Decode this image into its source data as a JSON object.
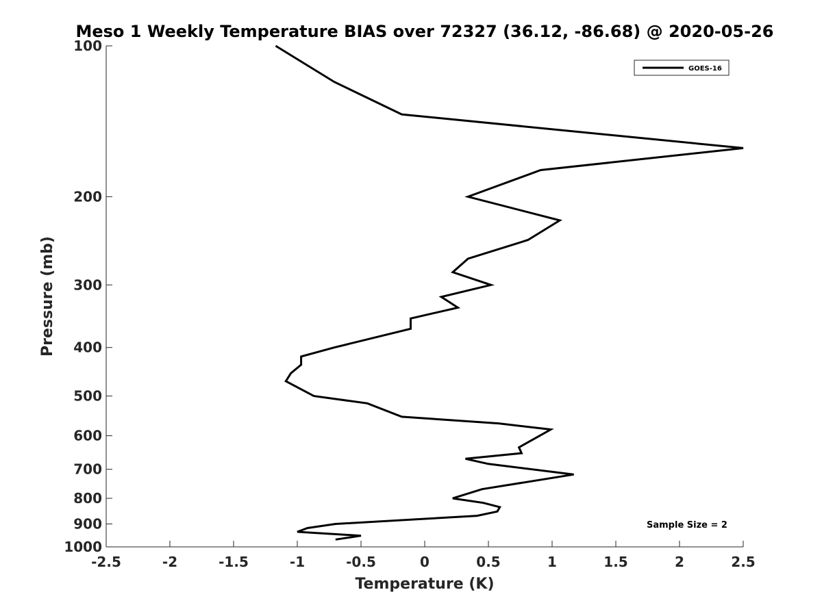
{
  "chart_data": {
    "type": "line",
    "title": "Meso 1 Weekly Temperature BIAS over 72327 (36.12, -86.68) @ 2020-05-26",
    "xlabel": "Temperature (K)",
    "ylabel": "Pressure (mb)",
    "xlim": [
      -2.5,
      2.5
    ],
    "ylim": [
      100,
      1000
    ],
    "yscale": "log",
    "y_reversed": true,
    "x_ticks": [
      -2.5,
      -2,
      -1.5,
      -1,
      -0.5,
      0,
      0.5,
      1,
      1.5,
      2,
      2.5
    ],
    "x_tick_labels": [
      "-2.5",
      "-2",
      "-1.5",
      "-1",
      "-0.5",
      "0",
      "0.5",
      "1",
      "1.5",
      "2",
      "2.5"
    ],
    "y_ticks": [
      100,
      200,
      300,
      400,
      500,
      600,
      700,
      800,
      900,
      1000
    ],
    "y_tick_labels": [
      "100",
      "200",
      "300",
      "400",
      "500",
      "600",
      "700",
      "800",
      "900",
      "1000"
    ],
    "legend": {
      "position": "top-right",
      "entries": [
        "GOES-16"
      ]
    },
    "annotation": "Sample Size = 2",
    "line_color": "#000000",
    "series": [
      {
        "name": "GOES-16",
        "points": [
          {
            "x": -1.17,
            "p": 100
          },
          {
            "x": -0.71,
            "p": 118
          },
          {
            "x": -0.18,
            "p": 137
          },
          {
            "x": 2.5,
            "p": 160
          },
          {
            "x": 0.91,
            "p": 177
          },
          {
            "x": 0.34,
            "p": 200
          },
          {
            "x": 1.06,
            "p": 223
          },
          {
            "x": 0.81,
            "p": 244
          },
          {
            "x": 0.34,
            "p": 266
          },
          {
            "x": 0.22,
            "p": 283
          },
          {
            "x": 0.52,
            "p": 300
          },
          {
            "x": 0.13,
            "p": 317
          },
          {
            "x": 0.26,
            "p": 333
          },
          {
            "x": -0.11,
            "p": 350
          },
          {
            "x": -0.11,
            "p": 367
          },
          {
            "x": -0.71,
            "p": 400
          },
          {
            "x": -0.97,
            "p": 417
          },
          {
            "x": -0.97,
            "p": 433
          },
          {
            "x": -1.05,
            "p": 450
          },
          {
            "x": -1.09,
            "p": 467
          },
          {
            "x": -0.87,
            "p": 500
          },
          {
            "x": -0.45,
            "p": 517
          },
          {
            "x": -0.18,
            "p": 550
          },
          {
            "x": 0.58,
            "p": 567
          },
          {
            "x": 0.99,
            "p": 583
          },
          {
            "x": 0.74,
            "p": 633
          },
          {
            "x": 0.76,
            "p": 650
          },
          {
            "x": 0.32,
            "p": 667
          },
          {
            "x": 0.5,
            "p": 683
          },
          {
            "x": 1.17,
            "p": 717
          },
          {
            "x": 0.45,
            "p": 767
          },
          {
            "x": 0.22,
            "p": 800
          },
          {
            "x": 0.46,
            "p": 817
          },
          {
            "x": 0.59,
            "p": 833
          },
          {
            "x": 0.57,
            "p": 850
          },
          {
            "x": 0.41,
            "p": 867
          },
          {
            "x": -0.7,
            "p": 900
          },
          {
            "x": -0.92,
            "p": 917
          },
          {
            "x": -1.0,
            "p": 933
          },
          {
            "x": -0.5,
            "p": 950
          },
          {
            "x": -0.7,
            "p": 967
          }
        ]
      }
    ]
  }
}
